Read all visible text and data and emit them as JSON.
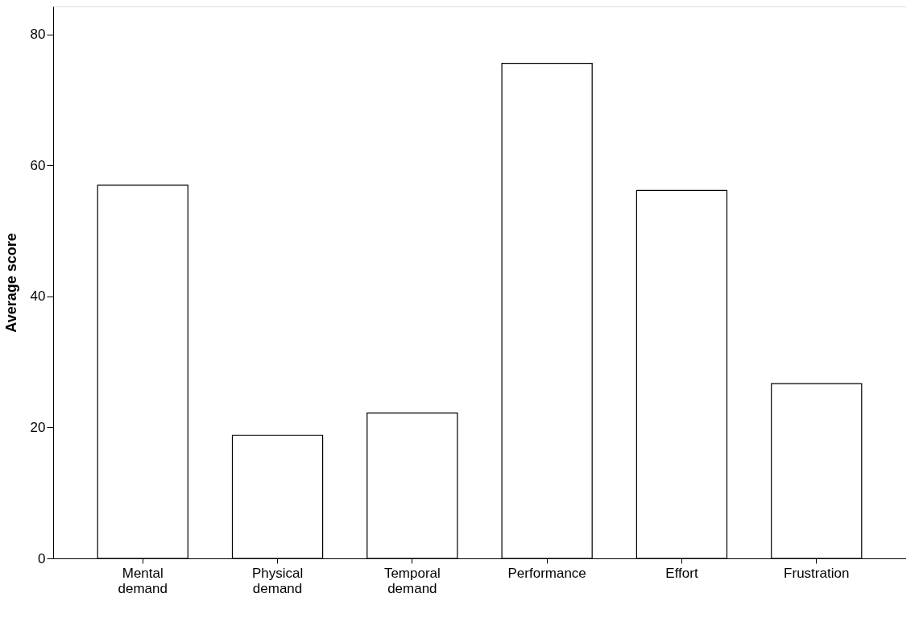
{
  "chart_data": {
    "type": "bar",
    "ylabel": "Average score",
    "categories": [
      "Mental demand",
      "Physical demand",
      "Temporal demand",
      "Performance",
      "Effort",
      "Frustration"
    ],
    "values": [
      57.0,
      18.8,
      22.2,
      75.6,
      56.2,
      26.7
    ],
    "color": "#ffffff",
    "ylim": [
      0,
      84.3
    ],
    "yticks": [
      0,
      20,
      40,
      60,
      80
    ],
    "grid": false
  }
}
